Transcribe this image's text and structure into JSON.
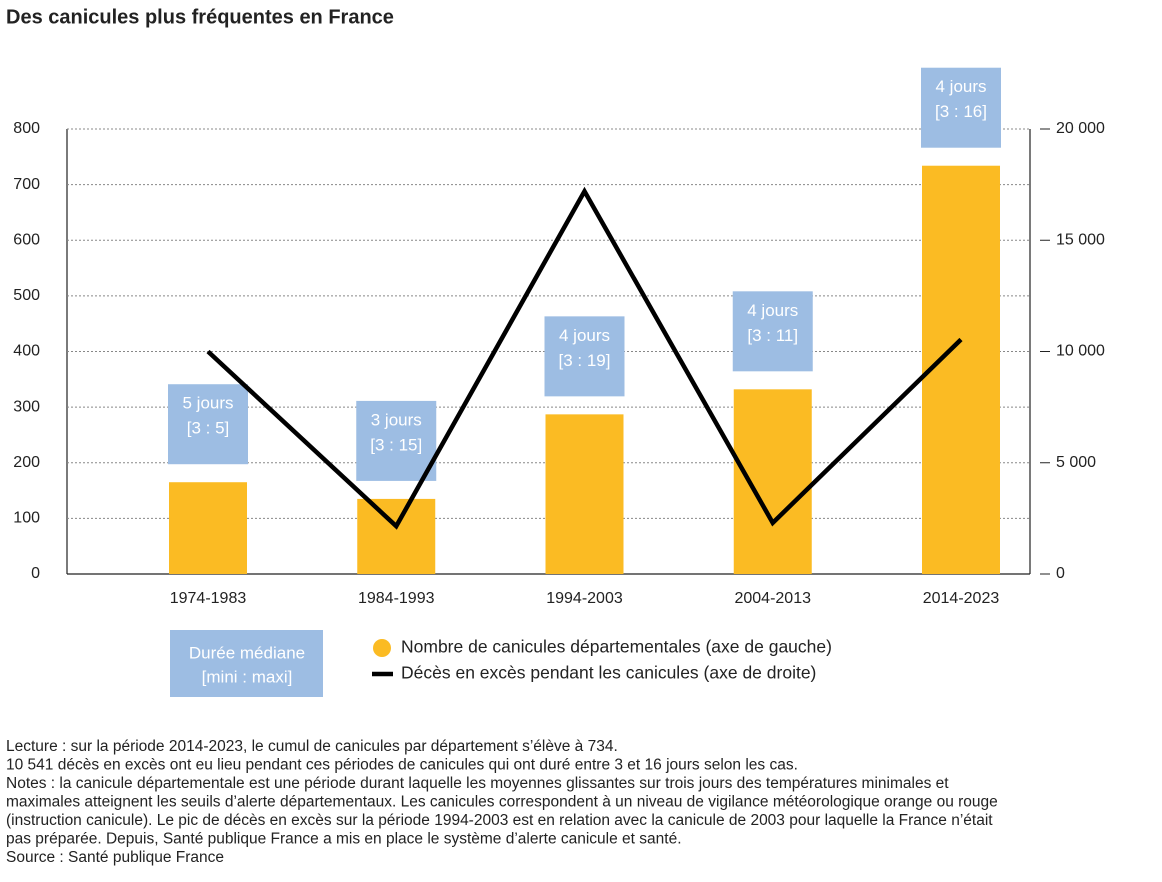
{
  "chart_data": {
    "type": "bar",
    "title": "Des canicules plus fréquentes en France",
    "categories": [
      "1974-1983",
      "1984-1993",
      "1994-2003",
      "2004-2013",
      "2014-2023"
    ],
    "series": [
      {
        "name": "Nombre de canicules départementales (axe de gauche)",
        "type": "bar",
        "color": "#fbbb23",
        "values": [
          165,
          135,
          287,
          332,
          734
        ]
      },
      {
        "name": "Décès en excès pendant les canicules (axe de droite)",
        "type": "line",
        "axis": "y2",
        "color": "#000000",
        "values": [
          10000,
          2150,
          17200,
          2300,
          10541
        ]
      }
    ],
    "annotations": [
      [
        "5 jours",
        "[3 : 5]"
      ],
      [
        "3 jours",
        "[3 : 15]"
      ],
      [
        "4 jours",
        "[3 : 19]"
      ],
      [
        "4 jours",
        "[3 : 11]"
      ],
      [
        "4 jours",
        "[3 : 16]"
      ]
    ],
    "annotation_color": "#9dbde3",
    "annotation_legend": [
      "Durée médiane",
      "[mini : maxi]"
    ],
    "ylim": [
      0,
      800
    ],
    "yticks": [
      0,
      100,
      200,
      300,
      400,
      500,
      600,
      700,
      800
    ],
    "y2lim": [
      0,
      20000
    ],
    "y2ticks": [
      0,
      {
        "value": 5000,
        "label": "5 000"
      },
      {
        "value": 10000,
        "label": "10 000"
      },
      {
        "value": 15000,
        "label": "15 000"
      },
      {
        "value": 20000,
        "label": "20 000"
      }
    ],
    "grid": true,
    "notes": [
      "Lecture : sur la période 2014-2023, le cumul de canicules par département s’élève à 734.",
      "10 541 décès en excès ont eu lieu pendant ces périodes de canicules qui ont duré entre 3 et 16 jours selon les cas.",
      "Notes : la canicule départementale est une période durant laquelle les moyennes glissantes sur trois jours des températures minimales et",
      "maximales atteignent les seuils d’alerte départementaux. Les canicules correspondent à un niveau de vigilance météorologique orange ou rouge",
      "(instruction canicule). Le pic de décès en excès sur la période 1994-2003 est en relation avec la canicule de 2003 pour laquelle la France n’était",
      "pas préparée. Depuis, Santé publique France a mis en place le système d’alerte canicule et santé.",
      "Source : Santé publique France"
    ]
  }
}
